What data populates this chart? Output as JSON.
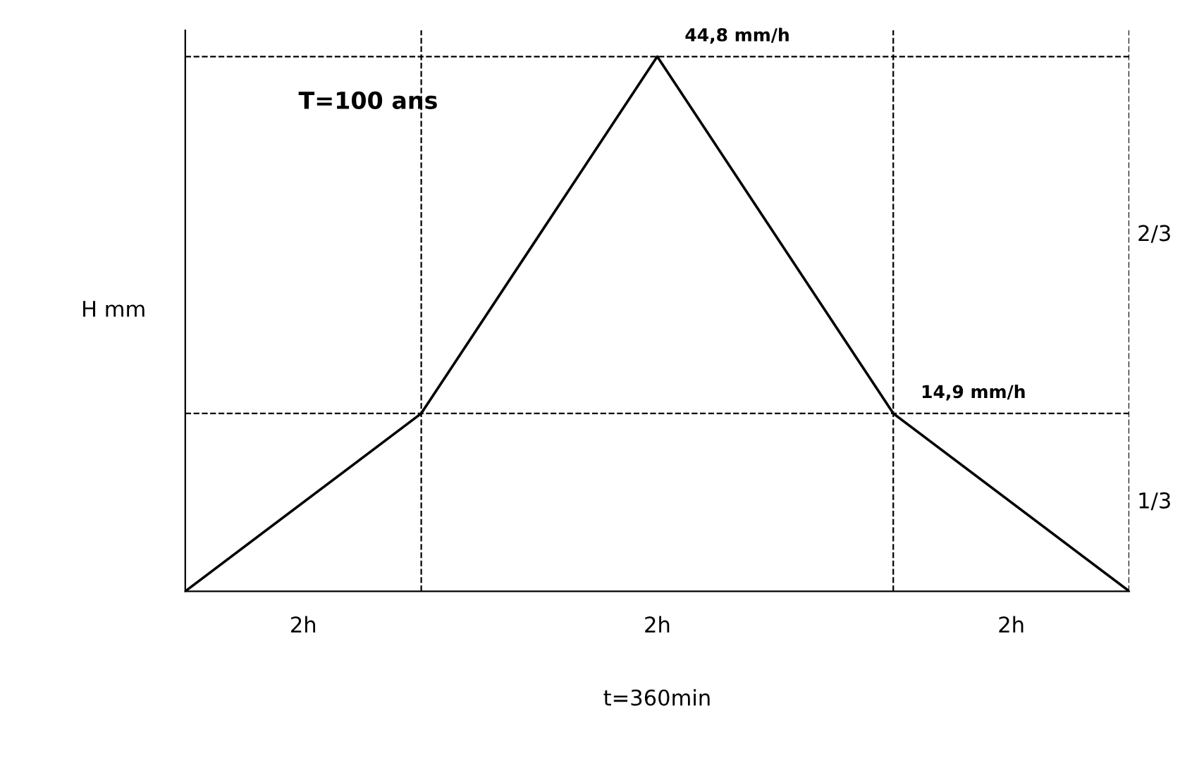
{
  "chart_data": {
    "type": "line",
    "title": "T=100 ans",
    "xlabel": "t=360min",
    "ylabel": "H mm",
    "categories": [
      null,
      null,
      null,
      null,
      null
    ],
    "series": [
      {
        "color": "#000000",
        "values": [
          0,
          14.9,
          44.8,
          14.9,
          0
        ],
        "value_labels": [
          null,
          null,
          "44,8 mm/h",
          "14,9 mm/h",
          null
        ]
      }
    ],
    "ylim": [
      0,
      47
    ],
    "tick_labels": false,
    "grid": false,
    "marker": "none",
    "line_style": "solid",
    "ref_lines": [
      {
        "axis": "y",
        "value": 14.9,
        "line_style": "dashed",
        "color": "#000000"
      },
      {
        "axis": "y",
        "value": 44.8,
        "line_style": "dashed",
        "color": "#000000"
      }
    ],
    "annotations": [
      "2h",
      "2h",
      "2h",
      "2/3",
      "1/3"
    ]
  }
}
